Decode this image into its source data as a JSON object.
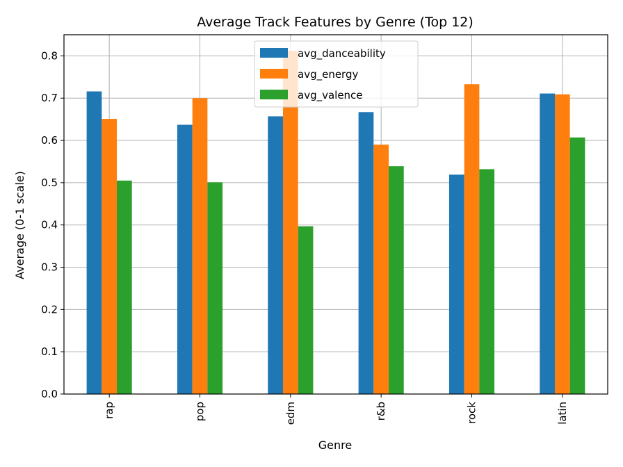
{
  "chart_data": {
    "type": "bar",
    "title": "Average Track Features by Genre (Top 12)",
    "xlabel": "Genre",
    "ylabel": "Average (0-1 scale)",
    "categories": [
      "rap",
      "pop",
      "edm",
      "r&b",
      "rock",
      "latin"
    ],
    "series": [
      {
        "name": "avg_danceability",
        "color": "#1f77b4",
        "values": [
          0.716,
          0.637,
          0.657,
          0.667,
          0.519,
          0.711
        ]
      },
      {
        "name": "avg_energy",
        "color": "#ff7f0e",
        "values": [
          0.651,
          0.7,
          0.812,
          0.59,
          0.733,
          0.709
        ]
      },
      {
        "name": "avg_valence",
        "color": "#2ca02c",
        "values": [
          0.505,
          0.501,
          0.397,
          0.539,
          0.532,
          0.607
        ]
      }
    ],
    "ylim": [
      0,
      0.85
    ],
    "yticks": [
      "0.0",
      "0.1",
      "0.2",
      "0.3",
      "0.4",
      "0.5",
      "0.6",
      "0.7",
      "0.8"
    ],
    "grid": true,
    "legend_position": "top-center"
  }
}
